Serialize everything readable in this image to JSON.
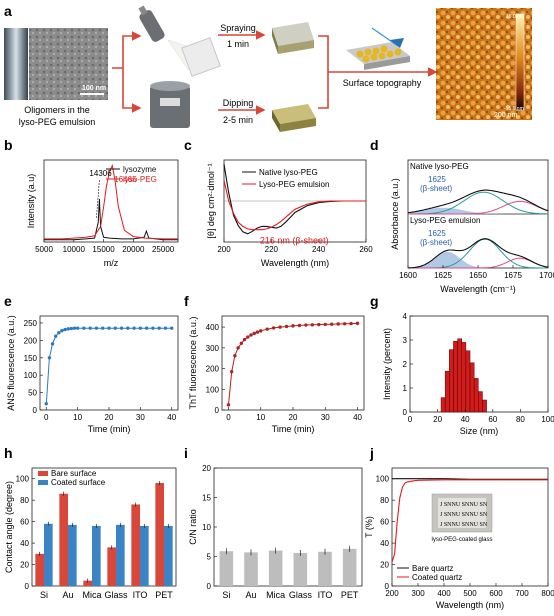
{
  "panel_labels": [
    "a",
    "b",
    "c",
    "d",
    "e",
    "f",
    "g",
    "h",
    "i",
    "j"
  ],
  "panel_a": {
    "tem_caption": "Oligomers in the lyso-PEG emulsion",
    "tem_caption_line1": "Oligomers in the",
    "tem_caption_line2": "lyso-PEG emulsion",
    "tem_scale": "100 nm",
    "spray_label": "Spraying",
    "spray_time": "1 min",
    "dip_label": "Dipping",
    "dip_time": "2-5 min",
    "topo_label": "Surface topography",
    "afm_scale": "200 nm",
    "afm_colorbar_top": "15.0 nm",
    "afm_colorbar_bottom": "-15.0 nm"
  },
  "chart_data": [
    {
      "panel": "b",
      "type": "line",
      "xlabel": "m/z",
      "ylabel": "Intensity (a.u)",
      "xlim": [
        5000,
        27500
      ],
      "xticks": [
        5000,
        10000,
        15000,
        20000,
        25000
      ],
      "annotations": [
        "14306",
        "16465"
      ],
      "legend": "top-right",
      "series": [
        {
          "name": "lysozyme",
          "color": "#111111",
          "x": [
            5000,
            8000,
            10000,
            12000,
            13500,
            14100,
            14306,
            14500,
            15000,
            16000,
            18000,
            20000,
            21800,
            22200,
            22600,
            25000,
            27500
          ],
          "y": [
            0.03,
            0.03,
            0.03,
            0.04,
            0.05,
            0.25,
            0.55,
            0.2,
            0.06,
            0.05,
            0.04,
            0.04,
            0.06,
            0.14,
            0.05,
            0.03,
            0.03
          ]
        },
        {
          "name": "lyso-PEG",
          "color": "#e41a1c",
          "x": [
            5000,
            8000,
            10000,
            12000,
            13500,
            14500,
            15000,
            15500,
            16000,
            16465,
            16900,
            17500,
            18500,
            20000,
            22000,
            25000,
            27500
          ],
          "y": [
            0.04,
            0.04,
            0.05,
            0.06,
            0.08,
            0.2,
            0.45,
            0.72,
            0.9,
            0.98,
            0.8,
            0.45,
            0.15,
            0.07,
            0.05,
            0.04,
            0.04
          ]
        }
      ]
    },
    {
      "panel": "c",
      "type": "line",
      "xlabel": "Wavelength (nm)",
      "ylabel": "[θ] deg cm²·dmol⁻¹",
      "xlim": [
        200,
        260
      ],
      "xticks": [
        200,
        220,
        240,
        260
      ],
      "annotation": "216 nm (β-sheet)",
      "legend": "top-right",
      "series": [
        {
          "name": "Native lyso-PEG",
          "color": "#111111",
          "x": [
            200,
            202,
            204,
            206,
            208,
            210,
            212,
            214,
            216,
            218,
            220,
            222,
            224,
            226,
            228,
            230,
            235,
            240,
            245,
            250,
            255,
            260
          ],
          "y": [
            0.9,
            0.2,
            -0.35,
            -0.6,
            -0.75,
            -0.8,
            -0.74,
            -0.66,
            -0.62,
            -0.62,
            -0.64,
            -0.66,
            -0.62,
            -0.52,
            -0.4,
            -0.28,
            -0.12,
            -0.04,
            -0.01,
            0,
            0,
            0
          ]
        },
        {
          "name": "Lyso-PEG emulsion",
          "color": "#e41a1c",
          "x": [
            200,
            202,
            204,
            206,
            208,
            210,
            212,
            214,
            216,
            218,
            220,
            222,
            224,
            226,
            228,
            230,
            235,
            240,
            245,
            250,
            255,
            260
          ],
          "y": [
            0.5,
            0.0,
            -0.3,
            -0.52,
            -0.62,
            -0.68,
            -0.7,
            -0.7,
            -0.7,
            -0.68,
            -0.64,
            -0.58,
            -0.5,
            -0.4,
            -0.3,
            -0.2,
            -0.08,
            -0.02,
            0,
            0,
            0,
            0
          ]
        }
      ]
    },
    {
      "panel": "d",
      "type": "line",
      "xlabel": "Wavelength (cm⁻¹)",
      "ylabel": "Absorbance (a.u.)",
      "xlim": [
        1600,
        1700
      ],
      "xticks": [
        1600,
        1625,
        1650,
        1675,
        1700
      ],
      "subplots": [
        {
          "title": "Native lyso-PEG",
          "peak_label": "1625",
          "peak_label2": "(β-sheet)",
          "components": [
            {
              "center": 1625,
              "amp": 0.18,
              "width": 14,
              "color": "#8fb3dc"
            },
            {
              "center": 1654,
              "amp": 0.62,
              "width": 14,
              "color": "#2b9c9a"
            },
            {
              "center": 1680,
              "amp": 0.36,
              "width": 12,
              "color": "#d94b8c"
            }
          ]
        },
        {
          "title": "Lyso-PEG emulsion",
          "peak_label": "1625",
          "peak_label2": "(β-sheet)",
          "components": [
            {
              "center": 1628,
              "amp": 0.46,
              "width": 9,
              "color": "#8fb3dc"
            },
            {
              "center": 1655,
              "amp": 0.82,
              "width": 11,
              "color": "#2b9c9a"
            },
            {
              "center": 1680,
              "amp": 0.28,
              "width": 9,
              "color": "#d94b8c"
            }
          ]
        }
      ]
    },
    {
      "panel": "e",
      "type": "line",
      "xlabel": "Time (min)",
      "ylabel": "ANS fluorescence (a.u.)",
      "xlim": [
        -2,
        42
      ],
      "ylim": [
        0,
        250
      ],
      "xticks": [
        0,
        10,
        20,
        30,
        40
      ],
      "yticks": [
        0,
        50,
        100,
        150,
        200,
        250
      ],
      "series": [
        {
          "name": "",
          "color": "#2b7bc0",
          "x": [
            0,
            1,
            2,
            3,
            4,
            5,
            6,
            7,
            8,
            9,
            10,
            12,
            14,
            16,
            18,
            20,
            22,
            24,
            26,
            28,
            30,
            32,
            34,
            36,
            38,
            40
          ],
          "y": [
            18,
            150,
            190,
            212,
            222,
            228,
            231,
            233,
            234,
            235,
            235,
            235,
            235,
            235,
            235,
            235,
            235,
            235,
            235,
            235,
            235,
            235,
            235,
            235,
            235,
            235
          ]
        }
      ]
    },
    {
      "panel": "f",
      "type": "line",
      "xlabel": "Time (min)",
      "ylabel": "ThT fluorescence (a.u.)",
      "xlim": [
        -2,
        42
      ],
      "ylim": [
        0,
        420
      ],
      "xticks": [
        0,
        10,
        20,
        30,
        40
      ],
      "yticks": [
        0,
        100,
        200,
        300,
        400
      ],
      "series": [
        {
          "name": "",
          "color": "#b22222",
          "x": [
            0,
            1,
            2,
            3,
            4,
            5,
            6,
            7,
            8,
            9,
            10,
            12,
            14,
            16,
            18,
            20,
            22,
            24,
            26,
            28,
            30,
            32,
            34,
            36,
            38,
            40
          ],
          "y": [
            25,
            185,
            262,
            300,
            322,
            340,
            352,
            362,
            370,
            376,
            382,
            390,
            396,
            400,
            403,
            406,
            408,
            410,
            411,
            412,
            413,
            414,
            415,
            416,
            417,
            418
          ]
        }
      ]
    },
    {
      "panel": "g",
      "type": "bar",
      "xlabel": "Size (nm)",
      "ylabel": "Intensity (percent)",
      "xlim": [
        0,
        100
      ],
      "ylim": [
        0,
        4
      ],
      "xticks": [
        0,
        20,
        40,
        60,
        80,
        100
      ],
      "yticks": [
        0,
        1,
        2,
        3,
        4
      ],
      "categories": [
        24,
        27,
        30,
        33,
        36,
        39,
        42,
        45,
        48,
        51,
        54
      ],
      "values": [
        0.6,
        1.7,
        2.6,
        2.95,
        3.05,
        2.9,
        2.55,
        2.05,
        1.4,
        0.85,
        0.5
      ]
    },
    {
      "panel": "h",
      "type": "bar",
      "xlabel": "",
      "ylabel": "Contact angle (degree)",
      "ylim": [
        0,
        110
      ],
      "yticks": [
        0,
        20,
        40,
        60,
        80,
        100
      ],
      "categories": [
        "Si",
        "Au",
        "Mica",
        "Glass",
        "ITO",
        "PET"
      ],
      "legend": "top-left",
      "series": [
        {
          "name": "Bare surface",
          "color": "#d9473a",
          "values": [
            30,
            86,
            5,
            36,
            76,
            96
          ]
        },
        {
          "name": "Coated surface",
          "color": "#3a83c4",
          "values": [
            58,
            57,
            56,
            57,
            56,
            56
          ]
        }
      ]
    },
    {
      "panel": "i",
      "type": "bar",
      "xlabel": "",
      "ylabel": "C/N ratio",
      "ylim": [
        0,
        20
      ],
      "yticks": [
        0,
        5,
        10,
        15,
        20
      ],
      "categories": [
        "Si",
        "Au",
        "Mica",
        "Glass",
        "ITO",
        "PET"
      ],
      "series": [
        {
          "name": "",
          "color": "#bdbdbd",
          "values": [
            5.9,
            5.7,
            6.0,
            5.6,
            5.8,
            6.3
          ]
        }
      ]
    },
    {
      "panel": "j",
      "type": "line",
      "xlabel": "Wavelength (nm)",
      "ylabel": "T (%)",
      "xlim": [
        200,
        800
      ],
      "ylim": [
        0,
        110
      ],
      "xticks": [
        200,
        300,
        400,
        500,
        600,
        700,
        800
      ],
      "yticks": [
        0,
        20,
        40,
        60,
        80,
        100
      ],
      "inset_caption": "lyso-PEG-coated glass",
      "inset_text": "J SNNU SNNU SN",
      "legend": "bottom-left",
      "series": [
        {
          "name": "Bare quartz",
          "color": "#111111",
          "x": [
            200,
            250,
            300,
            400,
            500,
            600,
            700,
            800
          ],
          "y": [
            100,
            100,
            100,
            100,
            99.5,
            99.5,
            99.5,
            99.5
          ]
        },
        {
          "name": "Coated quartz",
          "color": "#e41a1c",
          "x": [
            200,
            210,
            220,
            230,
            240,
            250,
            260,
            280,
            300,
            400,
            500,
            600,
            700,
            800
          ],
          "y": [
            22,
            30,
            60,
            82,
            92,
            96,
            97,
            98,
            98.5,
            99,
            99,
            99,
            99,
            99
          ]
        }
      ]
    }
  ]
}
